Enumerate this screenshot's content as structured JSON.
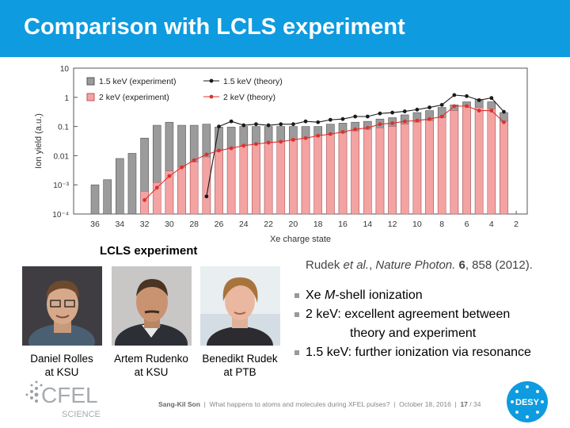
{
  "slide": {
    "title": "Comparison with LCLS experiment",
    "section_label": "LCLS experiment",
    "reference": {
      "authors": "Rudek",
      "etal": "et al.",
      "journal": "Nature Photon.",
      "volume": "6",
      "pages": "858 (2012)."
    },
    "bullets": [
      {
        "pre": "Xe ",
        "em": "M",
        "post": "-shell ionization"
      },
      {
        "pre": "2 keV: excellent agreement between",
        "em": "",
        "post": ""
      },
      {
        "pre": "theory and experiment",
        "em": "",
        "post": "",
        "continuation": true
      },
      {
        "pre": "1.5 keV: further ionization via resonance",
        "em": "",
        "post": ""
      }
    ],
    "people": [
      {
        "name": "Daniel Rolles",
        "affil": "at KSU"
      },
      {
        "name": "Artem Rudenko",
        "affil": "at KSU"
      },
      {
        "name": "Benedikt Rudek",
        "affil": "at PTB"
      }
    ],
    "footer": {
      "author": "Sang-Kil Son",
      "talk": "What happens to atoms and molecules during XFEL pulses?",
      "date": "October 18, 2016",
      "page": "17",
      "total": "34"
    },
    "logos": {
      "cfel_main": "CFEL",
      "cfel_sub": "SCIENCE",
      "desy": "DESY"
    },
    "colors": {
      "title_bar": "#0e9be0",
      "exp_1p5": "#9b9b9b",
      "exp_2": "#f4a3a3",
      "theory_1p5": "#1a1a1a",
      "theory_2": "#e03030"
    }
  },
  "chart_data": {
    "type": "bar",
    "xlabel": "Xe charge state",
    "ylabel": "Ion yield (a.u.)",
    "x_ticks": [
      "36",
      "34",
      "32",
      "30",
      "28",
      "26",
      "24",
      "22",
      "20",
      "18",
      "16",
      "14",
      "12",
      "10",
      "8",
      "6",
      "4",
      "2"
    ],
    "y_ticks": [
      "10",
      "1",
      "0.1",
      "0.01",
      "10⁻³",
      "10⁻⁴"
    ],
    "ylim": [
      0.0001,
      10
    ],
    "log_y": true,
    "legend_position": "top-left",
    "x_reversed": true,
    "categories": [
      36,
      35,
      34,
      33,
      32,
      31,
      30,
      29,
      28,
      27,
      26,
      25,
      24,
      23,
      22,
      21,
      20,
      19,
      18,
      17,
      16,
      15,
      14,
      13,
      12,
      11,
      10,
      9,
      8,
      7,
      6,
      5,
      4,
      3
    ],
    "series": [
      {
        "name": "1.5 keV (experiment)",
        "kind": "bar",
        "values": [
          0.001,
          0.0015,
          0.008,
          0.012,
          0.04,
          0.11,
          0.14,
          0.11,
          0.11,
          0.12,
          0.095,
          0.095,
          0.1,
          0.1,
          0.1,
          0.1,
          0.1,
          0.1,
          0.1,
          0.12,
          0.13,
          0.14,
          0.15,
          0.18,
          0.2,
          0.25,
          0.3,
          0.35,
          0.45,
          0.55,
          0.7,
          0.85,
          0.7,
          0.3
        ]
      },
      {
        "name": "2 keV (experiment)",
        "kind": "bar",
        "values": [
          null,
          null,
          null,
          null,
          0.0006,
          0.0012,
          0.003,
          0.004,
          0.006,
          0.009,
          0.015,
          0.018,
          0.022,
          0.025,
          0.028,
          0.03,
          0.035,
          0.04,
          0.05,
          0.055,
          0.06,
          0.07,
          0.08,
          0.09,
          0.1,
          0.12,
          0.14,
          0.16,
          0.2,
          0.35,
          0.5,
          0.45,
          0.4,
          0.15
        ]
      },
      {
        "name": "1.5 keV (theory)",
        "kind": "line",
        "values": [
          null,
          null,
          null,
          null,
          null,
          null,
          null,
          null,
          null,
          0.0004,
          0.1,
          0.15,
          0.11,
          0.12,
          0.11,
          0.12,
          0.12,
          0.15,
          0.14,
          0.17,
          0.18,
          0.22,
          0.22,
          0.28,
          0.3,
          0.33,
          0.38,
          0.45,
          0.55,
          1.2,
          1.1,
          0.8,
          0.95,
          0.32
        ]
      },
      {
        "name": "2 keV (theory)",
        "kind": "line",
        "values": [
          null,
          null,
          null,
          null,
          0.0003,
          0.0008,
          0.002,
          0.004,
          0.007,
          0.011,
          0.015,
          0.018,
          0.022,
          0.025,
          0.028,
          0.03,
          0.035,
          0.04,
          0.048,
          0.055,
          0.065,
          0.08,
          0.09,
          0.12,
          0.13,
          0.15,
          0.16,
          0.18,
          0.22,
          0.5,
          0.5,
          0.35,
          0.35,
          0.14
        ]
      }
    ]
  }
}
